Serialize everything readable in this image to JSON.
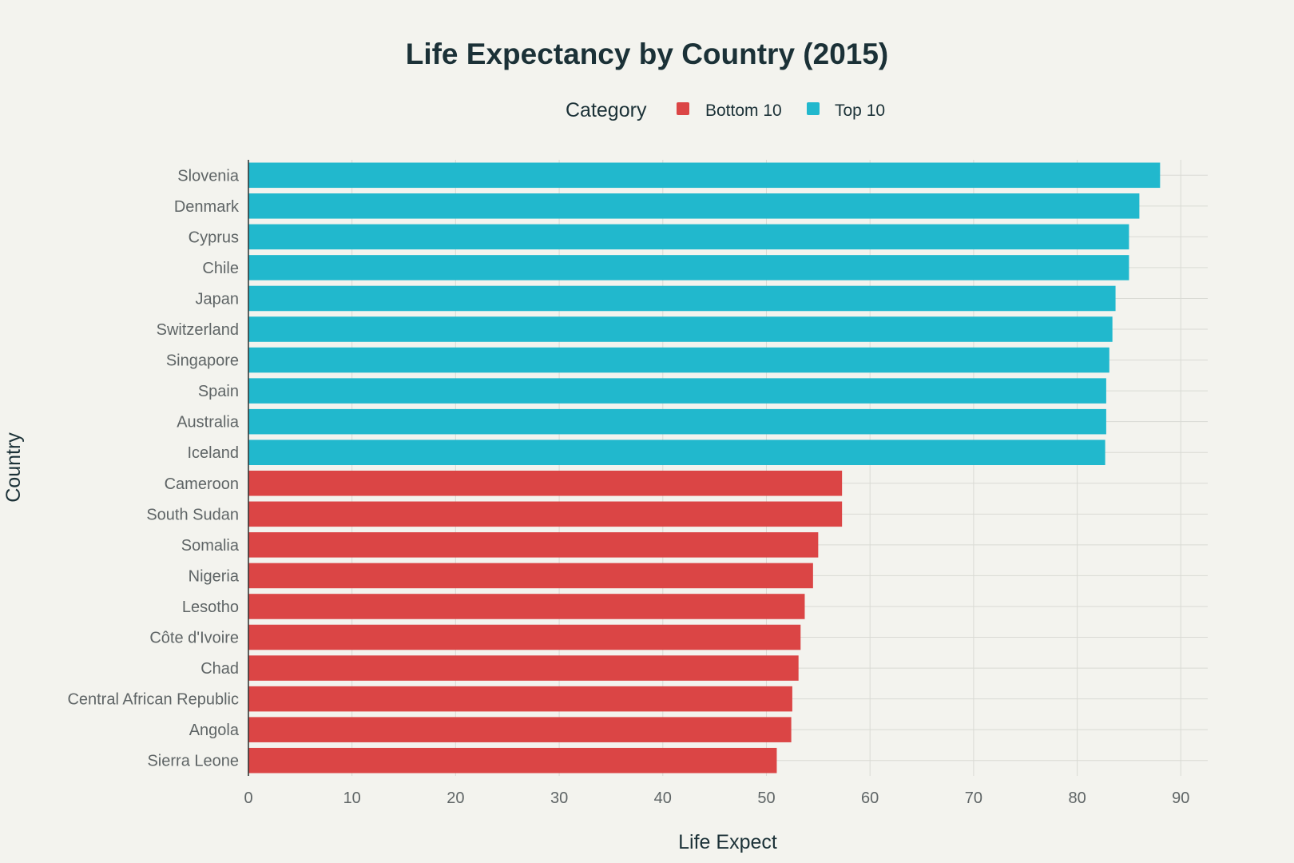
{
  "chart_data": {
    "type": "bar",
    "orientation": "horizontal",
    "title": "Life Expectancy by Country (2015)",
    "xlabel": "Life Expect",
    "ylabel": "Country",
    "xlim": [
      0,
      92.6
    ],
    "xticks": [
      0,
      10,
      20,
      30,
      40,
      50,
      60,
      70,
      80,
      90
    ],
    "grid": true,
    "legend": {
      "title": "Category",
      "placement": "top-center",
      "entries": [
        {
          "name": "Bottom 10",
          "color": "#db4545"
        },
        {
          "name": "Top 10",
          "color": "#21b8cd"
        }
      ]
    },
    "categories": [
      "Slovenia",
      "Denmark",
      "Cyprus",
      "Chile",
      "Japan",
      "Switzerland",
      "Singapore",
      "Spain",
      "Australia",
      "Iceland",
      "Cameroon",
      "South Sudan",
      "Somalia",
      "Nigeria",
      "Lesotho",
      "Côte d'Ivoire",
      "Chad",
      "Central African Republic",
      "Angola",
      "Sierra Leone"
    ],
    "values": [
      88.0,
      86.0,
      85.0,
      85.0,
      83.7,
      83.4,
      83.1,
      82.8,
      82.8,
      82.7,
      57.3,
      57.3,
      55.0,
      54.5,
      53.7,
      53.3,
      53.1,
      52.5,
      52.4,
      51.0
    ],
    "groups": [
      "Top 10",
      "Top 10",
      "Top 10",
      "Top 10",
      "Top 10",
      "Top 10",
      "Top 10",
      "Top 10",
      "Top 10",
      "Top 10",
      "Bottom 10",
      "Bottom 10",
      "Bottom 10",
      "Bottom 10",
      "Bottom 10",
      "Bottom 10",
      "Bottom 10",
      "Bottom 10",
      "Bottom 10",
      "Bottom 10"
    ]
  }
}
